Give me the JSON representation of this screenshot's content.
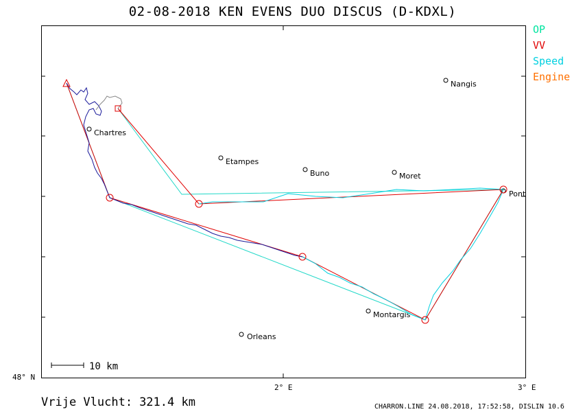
{
  "title": "02-08-2018    KEN EVENS    DUO DISCUS (D-KDXL)",
  "legend": [
    {
      "label": "OP",
      "color": "#00e5a0"
    },
    {
      "label": "VV",
      "color": "#e00000"
    },
    {
      "label": "Speed",
      "color": "#00d0e0"
    },
    {
      "label": "Engine",
      "color": "#ff7000"
    }
  ],
  "axes": {
    "lat_label": "48° N",
    "lon_labels": [
      "2° E",
      "3° E"
    ]
  },
  "scale": {
    "label": "10 km"
  },
  "towns": [
    {
      "name": "Nangis"
    },
    {
      "name": "Chartres"
    },
    {
      "name": "Etampes"
    },
    {
      "name": "Buno"
    },
    {
      "name": "Moret"
    },
    {
      "name": "Pont"
    },
    {
      "name": "Montargis"
    },
    {
      "name": "Orleans"
    }
  ],
  "footer": {
    "distance_label": "Vrije Vlucht:",
    "distance_value": "321.4 km",
    "credit": "CHARRON.LINE 24.08.2018, 17:52:58, DISLIN 10.6"
  }
}
